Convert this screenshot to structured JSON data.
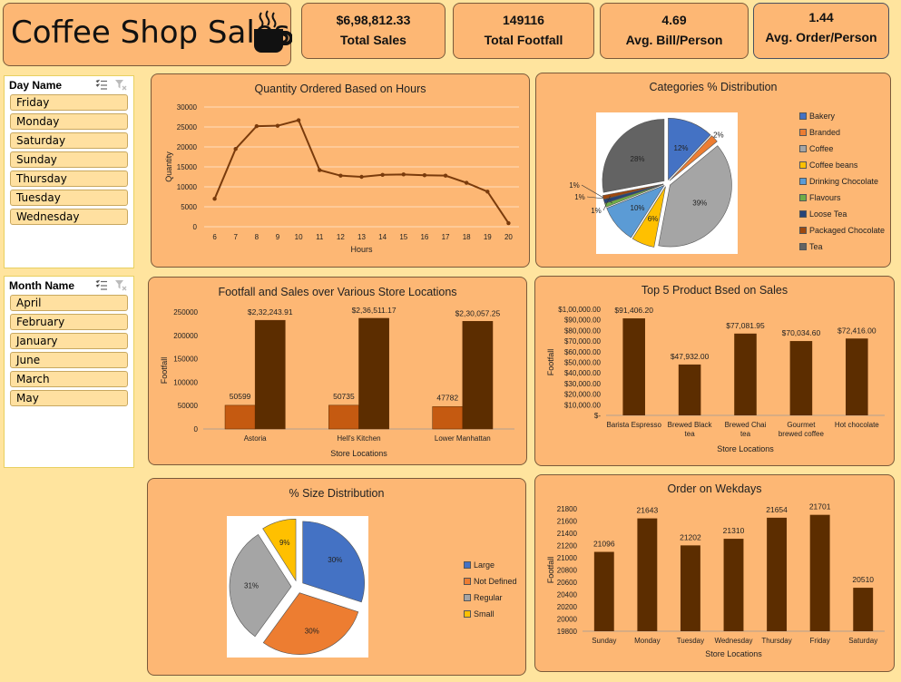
{
  "header": {
    "title": "Coffee Shop Sales",
    "icon": "coffee-cup-icon"
  },
  "kpis": [
    {
      "value": "$6,98,812.33",
      "label": "Total Sales"
    },
    {
      "value": "149116",
      "label": "Total Footfall"
    },
    {
      "value": "4.69",
      "label": "Avg. Bill/Person"
    },
    {
      "value": "1.44",
      "label": "Avg. Order/Person"
    }
  ],
  "slicers": {
    "day": {
      "title": "Day Name",
      "items": [
        "Friday",
        "Monday",
        "Saturday",
        "Sunday",
        "Thursday",
        "Tuesday",
        "Wednesday"
      ]
    },
    "month": {
      "title": "Month Name",
      "items": [
        "April",
        "February",
        "January",
        "June",
        "March",
        "May"
      ]
    }
  },
  "colors": {
    "bar": "#5C2D00",
    "bar_light": "#C55A11",
    "line": "#7A3B0C",
    "panel": "#FDB774",
    "background": "#FFE49E"
  },
  "chart_data": [
    {
      "id": "hours",
      "type": "line",
      "title": "Quantity Ordered Based on Hours",
      "xlabel": "Hours",
      "ylabel": "Quantity",
      "x": [
        6,
        7,
        8,
        9,
        10,
        11,
        12,
        13,
        14,
        15,
        16,
        17,
        18,
        19,
        20
      ],
      "values": [
        7000,
        19500,
        25200,
        25300,
        26700,
        14200,
        12800,
        12500,
        13000,
        13100,
        12900,
        12800,
        11000,
        8800,
        900
      ],
      "ylim": [
        0,
        30000
      ],
      "yticks": [
        "0",
        "5000",
        "10000",
        "15000",
        "20000",
        "25000",
        "30000"
      ],
      "grid": true
    },
    {
      "id": "categories",
      "type": "pie",
      "title": "Categories % Distribution",
      "labels": [
        "Bakery",
        "Branded",
        "Coffee",
        "Coffee beans",
        "Drinking Chocolate",
        "Flavours",
        "Loose Tea",
        "Packaged Chocolate",
        "Tea"
      ],
      "values": [
        12,
        2,
        39,
        6,
        10,
        1,
        1,
        1,
        28
      ],
      "value_labels": [
        "12%",
        "2%",
        "39%",
        "6%",
        "10%",
        "1%",
        "1%",
        "1%",
        "28%"
      ],
      "colors": [
        "#4472C4",
        "#ED7D31",
        "#A5A5A5",
        "#FFC000",
        "#5B9BD5",
        "#70AD47",
        "#264478",
        "#9E480E",
        "#636363"
      ],
      "legend": "right"
    },
    {
      "id": "stores",
      "type": "bar",
      "title": "Footfall  and Sales over Various Store Locations",
      "xlabel": "Store Locations",
      "ylabel": "Footfall",
      "categories": [
        "Astoria",
        "Hell's Kitchen",
        "Lower Manhattan"
      ],
      "series": [
        {
          "values": [
            50599,
            50735,
            47782
          ],
          "labels": [
            "50599",
            "50735",
            "47782"
          ]
        },
        {
          "values": [
            232243.91,
            236511.17,
            230057.25
          ],
          "labels": [
            "$2,32,243.91",
            "$2,36,511.17",
            "$2,30,057.25"
          ]
        }
      ],
      "ylim": [
        0,
        250000
      ],
      "yticks": [
        "0",
        "50000",
        "100000",
        "150000",
        "200000",
        "250000"
      ]
    },
    {
      "id": "products",
      "type": "bar",
      "title": "Top 5 Product Bsed on Sales",
      "xlabel": "Store Locations",
      "ylabel": "Footfall",
      "categories": [
        "Barista Espresso",
        "Brewed Black tea",
        "Brewed Chai tea",
        "Gourmet brewed coffee",
        "Hot chocolate"
      ],
      "category_lines": [
        [
          "Barista Espresso"
        ],
        [
          "Brewed Black",
          "tea"
        ],
        [
          "Brewed Chai",
          "tea"
        ],
        [
          "Gourmet",
          "brewed coffee"
        ],
        [
          "Hot chocolate"
        ]
      ],
      "values": [
        91406.2,
        47932.0,
        77081.95,
        70034.6,
        72416.0
      ],
      "labels": [
        "$91,406.20",
        "$47,932.00",
        "$77,081.95",
        "$70,034.60",
        "$72,416.00"
      ],
      "ylim": [
        0,
        100000
      ],
      "yticks": [
        "$-",
        "$10,000.00",
        "$20,000.00",
        "$30,000.00",
        "$40,000.00",
        "$50,000.00",
        "$60,000.00",
        "$70,000.00",
        "$80,000.00",
        "$90,000.00",
        "$1,00,000.00"
      ]
    },
    {
      "id": "sizes",
      "type": "pie",
      "title": "% Size Distribution",
      "labels": [
        "Large",
        "Not Defined",
        "Regular",
        "Small"
      ],
      "values": [
        30,
        30,
        31,
        9
      ],
      "value_labels": [
        "30%",
        "30%",
        "31%",
        "9%"
      ],
      "colors": [
        "#4472C4",
        "#ED7D31",
        "#A5A5A5",
        "#FFC000"
      ],
      "legend": "right"
    },
    {
      "id": "weekdays",
      "type": "bar",
      "title": "Order on Wekdays",
      "xlabel": "Store Locations",
      "ylabel": "Footfall",
      "categories": [
        "Sunday",
        "Monday",
        "Tuesday",
        "Wednesday",
        "Thursday",
        "Friday",
        "Saturday"
      ],
      "values": [
        21096,
        21643,
        21202,
        21310,
        21654,
        21701,
        20510
      ],
      "labels": [
        "21096",
        "21643",
        "21202",
        "21310",
        "21654",
        "21701",
        "20510"
      ],
      "ylim": [
        19800,
        21800
      ],
      "yticks": [
        "19800",
        "20000",
        "20200",
        "20400",
        "20600",
        "20800",
        "21000",
        "21200",
        "21400",
        "21600",
        "21800"
      ]
    }
  ]
}
